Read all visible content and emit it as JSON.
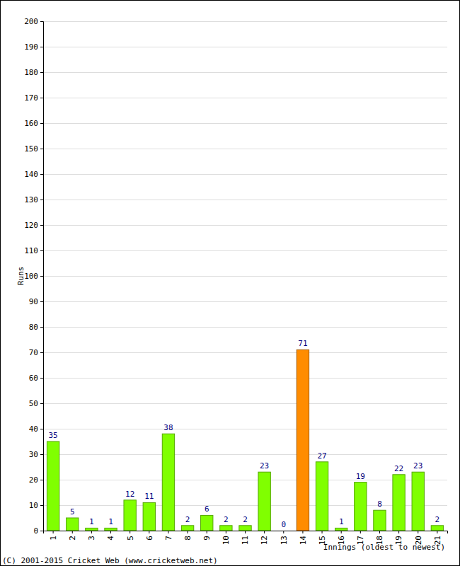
{
  "chart_data": {
    "type": "bar",
    "y_label": "Runs",
    "x_label": "Innings (oldest to newest)",
    "annotations": [
      "(C) 2001-2015 Cricket Web (www.cricketweb.net)"
    ],
    "categories": [
      "1",
      "2",
      "3",
      "4",
      "5",
      "6",
      "7",
      "8",
      "9",
      "10",
      "11",
      "12",
      "13",
      "14",
      "15",
      "16",
      "17",
      "18",
      "19",
      "20",
      "21"
    ],
    "values": [
      35,
      5,
      1,
      1,
      12,
      11,
      38,
      2,
      6,
      2,
      2,
      23,
      0,
      71,
      27,
      1,
      19,
      8,
      22,
      23,
      2
    ],
    "colors": [
      "#80ff00",
      "#80ff00",
      "#80ff00",
      "#80ff00",
      "#80ff00",
      "#80ff00",
      "#80ff00",
      "#80ff00",
      "#80ff00",
      "#80ff00",
      "#80ff00",
      "#80ff00",
      "#80ff00",
      "#ff8c00",
      "#80ff00",
      "#80ff00",
      "#80ff00",
      "#80ff00",
      "#80ff00",
      "#80ff00",
      "#80ff00"
    ],
    "ylim": [
      0,
      200
    ],
    "yticks": [
      0,
      10,
      20,
      30,
      40,
      50,
      60,
      70,
      80,
      90,
      100,
      110,
      120,
      130,
      140,
      150,
      160,
      170,
      180,
      190,
      200
    ],
    "grid": true,
    "data_labels": true
  }
}
